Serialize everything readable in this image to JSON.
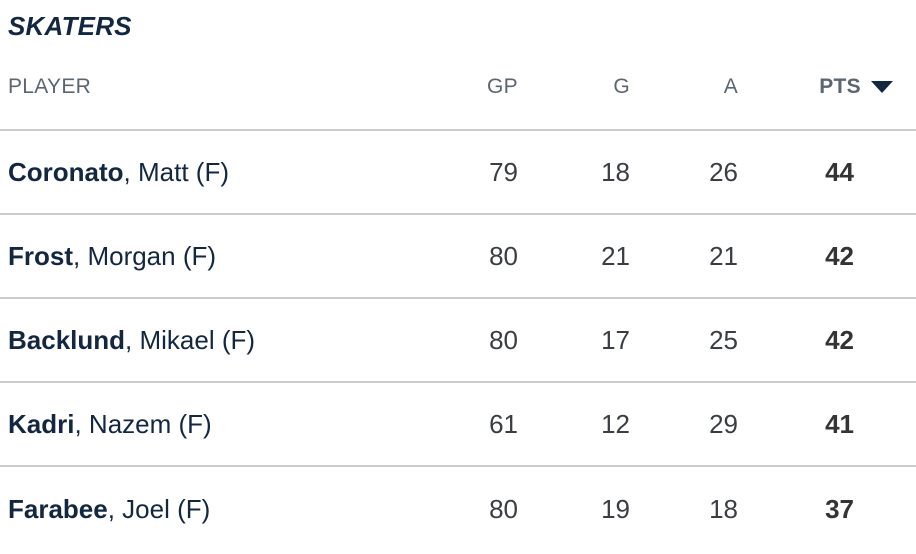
{
  "section": {
    "title": "SKATERS"
  },
  "table": {
    "columns": {
      "player": "PLAYER",
      "gp": "GP",
      "g": "G",
      "a": "A",
      "pts": "PTS"
    },
    "sort": {
      "column": "PTS",
      "direction": "descending",
      "icon": "caret-down"
    },
    "rows": [
      {
        "last": "Coronato",
        "rest": ", Matt (F)",
        "gp": "79",
        "g": "18",
        "a": "26",
        "pts": "44"
      },
      {
        "last": "Frost",
        "rest": ", Morgan (F)",
        "gp": "80",
        "g": "21",
        "a": "21",
        "pts": "42"
      },
      {
        "last": "Backlund",
        "rest": ", Mikael (F)",
        "gp": "80",
        "g": "17",
        "a": "25",
        "pts": "42"
      },
      {
        "last": "Kadri",
        "rest": ", Nazem (F)",
        "gp": "61",
        "g": "12",
        "a": "29",
        "pts": "41"
      },
      {
        "last": "Farabee",
        "rest": ", Joel (F)",
        "gp": "80",
        "g": "19",
        "a": "18",
        "pts": "37"
      }
    ]
  },
  "colors": {
    "navy": "#132740",
    "header_gray": "#5c6671",
    "stat_gray": "#3a3e43",
    "divider": "#cbcbcb",
    "background": "#ffffff"
  }
}
